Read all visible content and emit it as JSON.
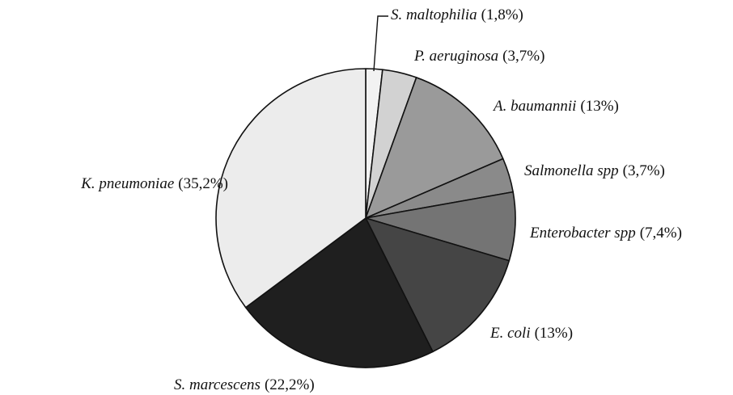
{
  "chart_data": {
    "type": "pie",
    "categories": [
      "S. maltophilia",
      "P. aeruginosa",
      "A. baumannii",
      "Salmonella spp",
      "Enterobacter spp",
      "E. coli",
      "S. marcescens",
      "K. pneumoniae"
    ],
    "values": [
      1.8,
      3.7,
      13,
      3.7,
      7.4,
      13,
      22.2,
      35.2
    ],
    "value_labels": [
      "(1,8%)",
      "(3,7%)",
      "(13%)",
      "(3,7%)",
      "(7,4%)",
      "(13%)",
      "(22,2%)",
      "(35,2%)"
    ],
    "colors": [
      "#f2f2f2",
      "#d2d2d2",
      "#9a9a9a",
      "#8a8a8a",
      "#747474",
      "#454545",
      "#1f1f1f",
      "#ececec"
    ]
  }
}
